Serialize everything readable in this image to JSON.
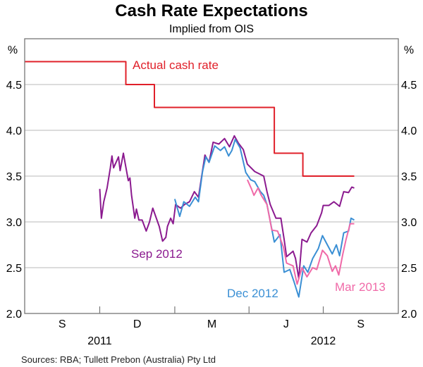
{
  "chart_data": {
    "type": "line",
    "title": "Cash Rate Expectations",
    "subtitle": "Implied from OIS",
    "ylabel_left": "%",
    "ylabel_right": "%",
    "ylim": [
      2.0,
      5.0
    ],
    "yticks": [
      "2.0",
      "2.5",
      "3.0",
      "3.5",
      "4.0",
      "4.5"
    ],
    "ytick_values": [
      2.0,
      2.5,
      3.0,
      3.5,
      4.0,
      4.5
    ],
    "xlim": [
      "2011-07-01",
      "2012-10-01"
    ],
    "quarter_ticks": [
      "2011-10-01",
      "2012-01-01",
      "2012-04-01",
      "2012-07-01"
    ],
    "xtick_labels": [
      {
        "label": "S",
        "start": "2011-07-01",
        "end": "2011-10-01"
      },
      {
        "label": "D",
        "start": "2011-10-01",
        "end": "2012-01-01"
      },
      {
        "label": "M",
        "start": "2012-01-01",
        "end": "2012-04-01"
      },
      {
        "label": "J",
        "start": "2012-04-01",
        "end": "2012-07-01"
      },
      {
        "label": "S",
        "start": "2012-07-01",
        "end": "2012-10-01"
      }
    ],
    "year_labels": [
      {
        "label": "2011",
        "at": "2011-10-01"
      },
      {
        "label": "2012",
        "at": "2012-07-01"
      }
    ],
    "grid": true,
    "source": "Sources: RBA; Tullett Prebon (Australia) Pty Ltd",
    "series": [
      {
        "name": "Actual cash rate",
        "color": "#e0202a",
        "step": true,
        "points": [
          [
            "2011-07-01",
            4.75
          ],
          [
            "2011-11-02",
            4.5
          ],
          [
            "2011-12-07",
            4.25
          ],
          [
            "2012-05-02",
            3.75
          ],
          [
            "2012-06-06",
            3.5
          ],
          [
            "2012-08-08",
            3.5
          ]
        ]
      },
      {
        "name": "Sep 2012",
        "color": "#8b1a8f",
        "points": [
          [
            "2011-10-01",
            3.36
          ],
          [
            "2011-10-03",
            3.04
          ],
          [
            "2011-10-06",
            3.22
          ],
          [
            "2011-10-10",
            3.37
          ],
          [
            "2011-10-14",
            3.59
          ],
          [
            "2011-10-16",
            3.72
          ],
          [
            "2011-10-18",
            3.59
          ],
          [
            "2011-10-24",
            3.71
          ],
          [
            "2011-10-26",
            3.56
          ],
          [
            "2011-10-30",
            3.75
          ],
          [
            "2011-11-01",
            3.65
          ],
          [
            "2011-11-05",
            3.45
          ],
          [
            "2011-11-07",
            3.48
          ],
          [
            "2011-11-09",
            3.29
          ],
          [
            "2011-11-13",
            3.04
          ],
          [
            "2011-11-15",
            3.14
          ],
          [
            "2011-11-18",
            3.02
          ],
          [
            "2011-11-22",
            3.02
          ],
          [
            "2011-11-27",
            2.9
          ],
          [
            "2011-12-01",
            3.0
          ],
          [
            "2011-12-05",
            3.15
          ],
          [
            "2011-12-09",
            3.05
          ],
          [
            "2011-12-13",
            2.95
          ],
          [
            "2011-12-17",
            2.79
          ],
          [
            "2011-12-21",
            2.83
          ],
          [
            "2011-12-23",
            2.95
          ],
          [
            "2011-12-27",
            3.04
          ],
          [
            "2011-12-30",
            2.98
          ],
          [
            "2012-01-02",
            3.19
          ],
          [
            "2012-01-08",
            3.15
          ],
          [
            "2012-01-13",
            3.19
          ],
          [
            "2012-01-19",
            3.22
          ],
          [
            "2012-01-25",
            3.33
          ],
          [
            "2012-01-30",
            3.27
          ],
          [
            "2012-02-03",
            3.5
          ],
          [
            "2012-02-07",
            3.73
          ],
          [
            "2012-02-12",
            3.65
          ],
          [
            "2012-02-17",
            3.87
          ],
          [
            "2012-02-24",
            3.85
          ],
          [
            "2012-03-02",
            3.91
          ],
          [
            "2012-03-08",
            3.82
          ],
          [
            "2012-03-14",
            3.94
          ],
          [
            "2012-03-19",
            3.86
          ],
          [
            "2012-03-25",
            3.79
          ],
          [
            "2012-03-30",
            3.63
          ],
          [
            "2012-04-08",
            3.55
          ],
          [
            "2012-04-19",
            3.5
          ],
          [
            "2012-04-23",
            3.33
          ],
          [
            "2012-04-27",
            3.19
          ],
          [
            "2012-05-04",
            3.04
          ],
          [
            "2012-05-10",
            3.04
          ],
          [
            "2012-05-14",
            2.81
          ],
          [
            "2012-05-17",
            2.62
          ],
          [
            "2012-05-25",
            2.68
          ],
          [
            "2012-05-28",
            2.6
          ],
          [
            "2012-06-01",
            2.38
          ],
          [
            "2012-06-05",
            2.81
          ],
          [
            "2012-06-11",
            2.78
          ],
          [
            "2012-06-16",
            2.88
          ],
          [
            "2012-06-23",
            2.96
          ],
          [
            "2012-06-29",
            3.1
          ],
          [
            "2012-07-01",
            3.18
          ],
          [
            "2012-07-08",
            3.18
          ],
          [
            "2012-07-14",
            3.22
          ],
          [
            "2012-07-21",
            3.17
          ],
          [
            "2012-07-26",
            3.33
          ],
          [
            "2012-08-01",
            3.32
          ],
          [
            "2012-08-05",
            3.38
          ],
          [
            "2012-08-08",
            3.37
          ]
        ]
      },
      {
        "name": "Dec 2012",
        "color": "#3a8fd4",
        "points": [
          [
            "2012-01-01",
            3.25
          ],
          [
            "2012-01-07",
            3.06
          ],
          [
            "2012-01-12",
            3.22
          ],
          [
            "2012-01-19",
            3.17
          ],
          [
            "2012-01-26",
            3.27
          ],
          [
            "2012-01-30",
            3.22
          ],
          [
            "2012-02-04",
            3.55
          ],
          [
            "2012-02-08",
            3.71
          ],
          [
            "2012-02-12",
            3.65
          ],
          [
            "2012-02-19",
            3.83
          ],
          [
            "2012-02-26",
            3.78
          ],
          [
            "2012-03-02",
            3.82
          ],
          [
            "2012-03-07",
            3.72
          ],
          [
            "2012-03-11",
            3.78
          ],
          [
            "2012-03-15",
            3.9
          ],
          [
            "2012-03-21",
            3.81
          ],
          [
            "2012-03-28",
            3.54
          ],
          [
            "2012-04-03",
            3.46
          ],
          [
            "2012-04-08",
            3.44
          ],
          [
            "2012-04-15",
            3.33
          ],
          [
            "2012-04-19",
            3.29
          ],
          [
            "2012-04-23",
            3.19
          ],
          [
            "2012-05-02",
            2.78
          ],
          [
            "2012-05-09",
            2.86
          ],
          [
            "2012-05-14",
            2.45
          ],
          [
            "2012-05-21",
            2.48
          ],
          [
            "2012-05-26",
            2.35
          ],
          [
            "2012-06-01",
            2.18
          ],
          [
            "2012-06-07",
            2.52
          ],
          [
            "2012-06-12",
            2.45
          ],
          [
            "2012-06-18",
            2.6
          ],
          [
            "2012-06-25",
            2.71
          ],
          [
            "2012-06-30",
            2.85
          ],
          [
            "2012-07-06",
            2.75
          ],
          [
            "2012-07-12",
            2.65
          ],
          [
            "2012-07-17",
            2.75
          ],
          [
            "2012-07-21",
            2.63
          ],
          [
            "2012-07-26",
            2.88
          ],
          [
            "2012-08-01",
            2.9
          ],
          [
            "2012-08-04",
            3.04
          ],
          [
            "2012-08-08",
            3.02
          ]
        ]
      },
      {
        "name": "Mar 2013",
        "color": "#f06aa8",
        "points": [
          [
            "2012-03-30",
            3.46
          ],
          [
            "2012-04-04",
            3.36
          ],
          [
            "2012-04-07",
            3.29
          ],
          [
            "2012-04-12",
            3.37
          ],
          [
            "2012-04-16",
            3.29
          ],
          [
            "2012-04-23",
            3.19
          ],
          [
            "2012-04-29",
            2.91
          ],
          [
            "2012-05-06",
            2.9
          ],
          [
            "2012-05-13",
            2.73
          ],
          [
            "2012-05-17",
            2.55
          ],
          [
            "2012-05-25",
            2.52
          ],
          [
            "2012-05-30",
            2.32
          ],
          [
            "2012-06-05",
            2.5
          ],
          [
            "2012-06-11",
            2.4
          ],
          [
            "2012-06-18",
            2.5
          ],
          [
            "2012-06-23",
            2.48
          ],
          [
            "2012-06-30",
            2.69
          ],
          [
            "2012-07-06",
            2.63
          ],
          [
            "2012-07-12",
            2.46
          ],
          [
            "2012-07-16",
            2.52
          ],
          [
            "2012-07-20",
            2.42
          ],
          [
            "2012-07-25",
            2.65
          ],
          [
            "2012-07-29",
            2.81
          ],
          [
            "2012-08-03",
            2.98
          ],
          [
            "2012-08-08",
            2.98
          ]
        ]
      }
    ]
  }
}
